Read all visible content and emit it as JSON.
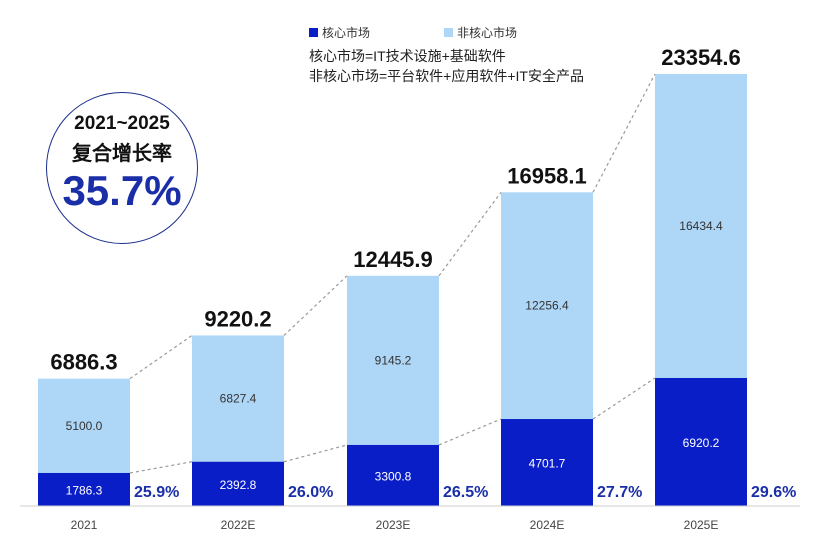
{
  "legend": {
    "core": {
      "label": "核心市场",
      "color": "#0a1ec8"
    },
    "noncore": {
      "label": "非核心市场",
      "color": "#aed6f7"
    }
  },
  "notes": [
    "核心市场=IT技术设施+基础软件",
    "非核心市场=平台软件+应用软件+IT安全产品"
  ],
  "cagr": {
    "years": "2021~2025",
    "label": "复合增长率",
    "value": "35.7%"
  },
  "chart_data": {
    "type": "bar",
    "stacked": true,
    "categories": [
      "2021",
      "2022E",
      "2023E",
      "2024E",
      "2025E"
    ],
    "series": [
      {
        "name": "核心市场",
        "values": [
          1786.3,
          2392.8,
          3300.8,
          4701.7,
          6920.2
        ],
        "labels": [
          "1786.3",
          "2392.8",
          "3300.8",
          "4701.7",
          "6920.2"
        ]
      },
      {
        "name": "非核心市场",
        "values": [
          5100.0,
          6827.4,
          9145.2,
          12256.4,
          16434.4
        ],
        "labels": [
          "5100.0",
          "6827.4",
          "9145.2",
          "12256.4",
          "16434.4"
        ]
      }
    ],
    "totals": [
      "6886.3",
      "9220.2",
      "12445.9",
      "16958.1",
      "23354.6"
    ],
    "total_values": [
      6886.3,
      9220.2,
      12445.9,
      16958.1,
      23354.6
    ],
    "core_share": [
      "25.9%",
      "26.0%",
      "26.5%",
      "27.7%",
      "29.6%"
    ],
    "ylim": [
      0,
      23354.6
    ],
    "grid": false,
    "legend_position": "top",
    "colors": {
      "core": "#0a1ec8",
      "noncore": "#aed6f7",
      "share_text": "#1a2ea8",
      "dashed_line": "#999999"
    }
  }
}
